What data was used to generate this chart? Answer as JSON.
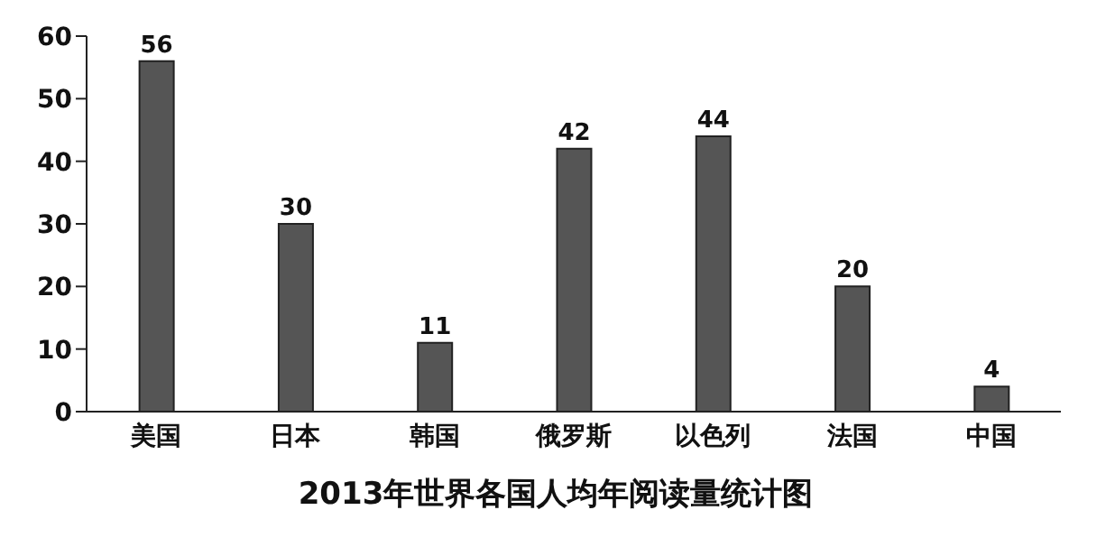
{
  "chart_data": {
    "type": "bar",
    "title": "2013年世界各国人均年阅读量统计图",
    "categories": [
      "美国",
      "日本",
      "韩国",
      "俄罗斯",
      "以色列",
      "法国",
      "中国"
    ],
    "values": [
      56,
      30,
      11,
      42,
      44,
      20,
      4
    ],
    "color": "#555555",
    "ylim": [
      0,
      60
    ],
    "yticks": [
      0,
      10,
      20,
      30,
      40,
      50,
      60
    ],
    "data_labels": true,
    "grid": false
  }
}
